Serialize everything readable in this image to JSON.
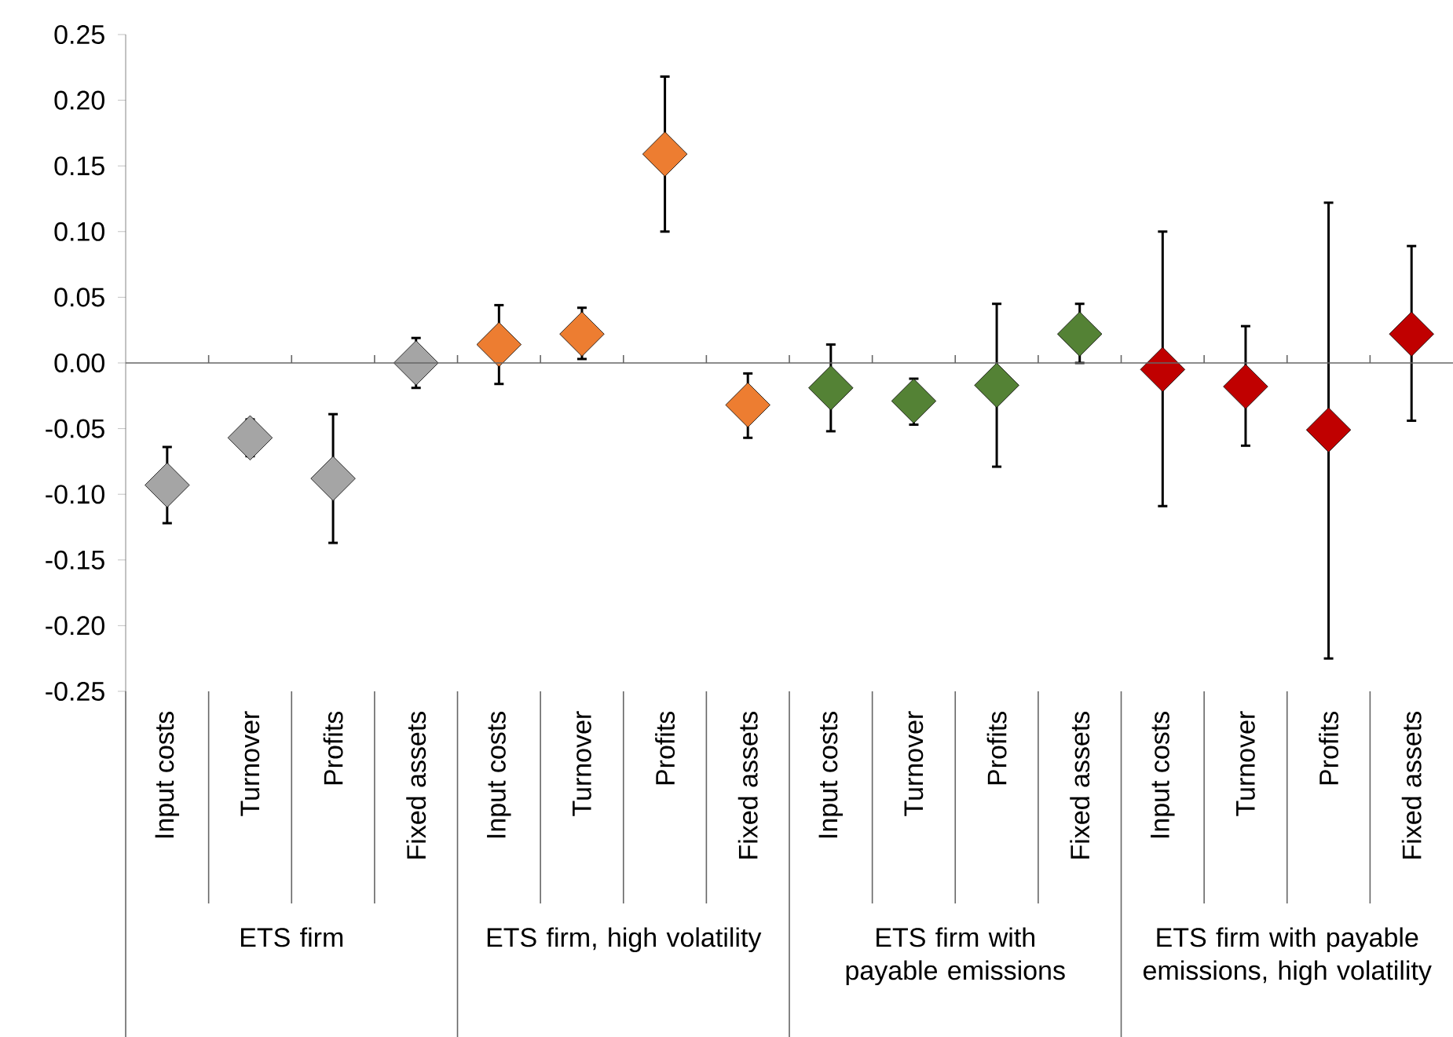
{
  "chart_data": {
    "type": "scatter",
    "marker": "diamond",
    "categories": [
      "Input costs",
      "Turnover",
      "Profits",
      "Fixed assets",
      "Input costs",
      "Turnover",
      "Profits",
      "Fixed assets",
      "Input costs",
      "Turnover",
      "Profits",
      "Fixed assets",
      "Input costs",
      "Turnover",
      "Profits",
      "Fixed assets"
    ],
    "values": [
      -0.093,
      -0.057,
      -0.088,
      0.0,
      0.014,
      0.022,
      0.159,
      -0.032,
      -0.019,
      -0.029,
      -0.017,
      0.022,
      -0.005,
      -0.018,
      -0.051,
      0.022
    ],
    "errors": [
      [
        -0.122,
        -0.064
      ],
      [
        -0.071,
        -0.043
      ],
      [
        -0.137,
        -0.039
      ],
      [
        -0.019,
        0.019
      ],
      [
        -0.016,
        0.044
      ],
      [
        0.003,
        0.042
      ],
      [
        0.1,
        0.218
      ],
      [
        -0.057,
        -0.008
      ],
      [
        -0.052,
        0.014
      ],
      [
        -0.047,
        -0.012
      ],
      [
        -0.079,
        0.045
      ],
      [
        0.0,
        0.045
      ],
      [
        -0.109,
        0.1
      ],
      [
        -0.063,
        0.028
      ],
      [
        -0.225,
        0.122
      ],
      [
        -0.044,
        0.089
      ]
    ],
    "colors": [
      "#a5a5a5",
      "#a5a5a5",
      "#a5a5a5",
      "#a5a5a5",
      "#ed7d31",
      "#ed7d31",
      "#ed7d31",
      "#ed7d31",
      "#548235",
      "#548235",
      "#548235",
      "#548235",
      "#c00000",
      "#c00000",
      "#c00000",
      "#c00000"
    ],
    "ylim": [
      -0.25,
      0.25
    ],
    "yticks": [
      {
        "value": 0.25,
        "label": "0.25"
      },
      {
        "value": 0.2,
        "label": "0.20"
      },
      {
        "value": 0.15,
        "label": "0.15"
      },
      {
        "value": 0.1,
        "label": "0.10"
      },
      {
        "value": 0.05,
        "label": "0.05"
      },
      {
        "value": 0,
        "label": "0.00"
      },
      {
        "value": -0.05,
        "label": "-0.05"
      },
      {
        "value": -0.1,
        "label": "-0.10"
      },
      {
        "value": -0.15,
        "label": "-0.15"
      },
      {
        "value": -0.2,
        "label": "-0.20"
      },
      {
        "value": -0.25,
        "label": "-0.25"
      }
    ],
    "annotations": [
      "ETS firm",
      "ETS firm, high volatility",
      "ETS firm with payable emissions",
      "ETS firm with payable emissions, high volatility"
    ]
  }
}
